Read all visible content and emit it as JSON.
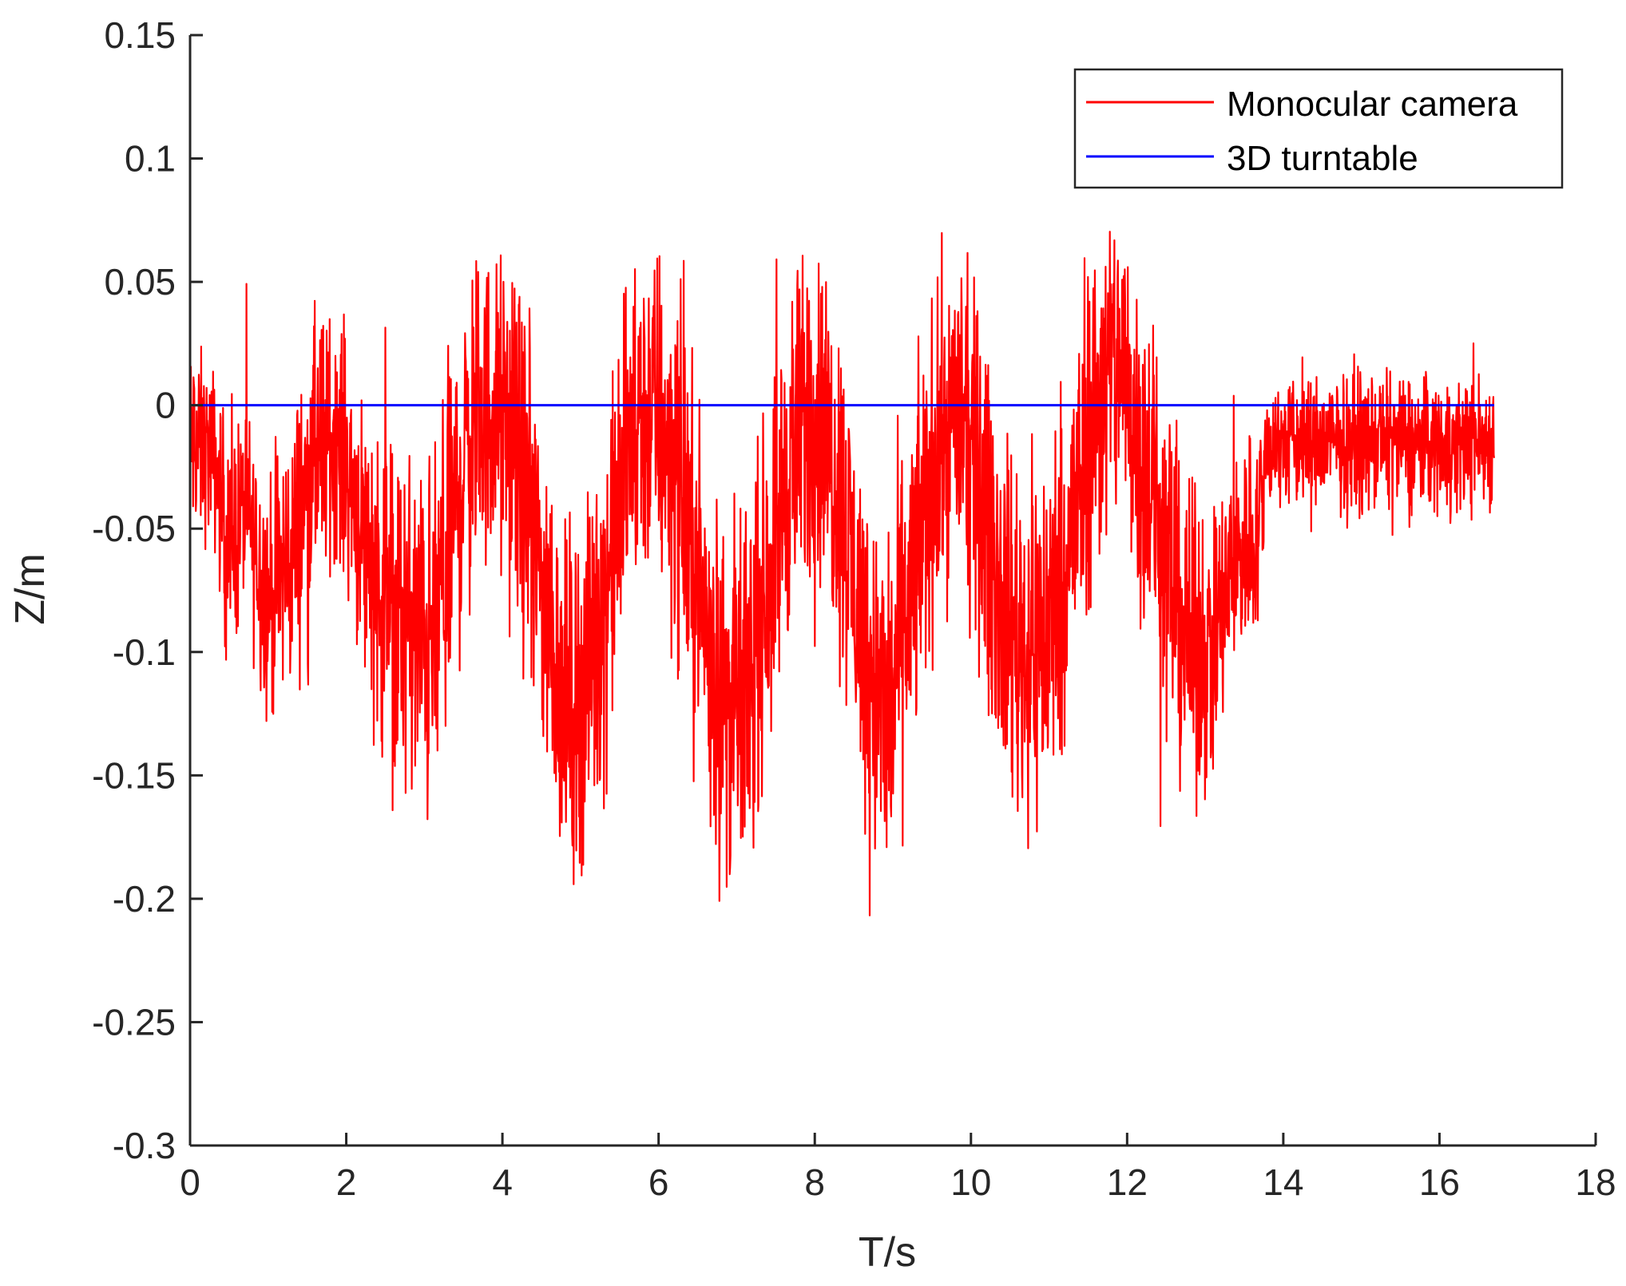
{
  "chart_data": {
    "type": "line",
    "title": "",
    "xlabel": "T/s",
    "ylabel": "Z/m",
    "xlim": [
      0,
      18
    ],
    "ylim": [
      -0.3,
      0.15
    ],
    "x_ticks": [
      0,
      2,
      4,
      6,
      8,
      10,
      12,
      14,
      16,
      18
    ],
    "y_ticks": [
      0.15,
      0.1,
      0.05,
      0,
      -0.05,
      -0.1,
      -0.15,
      -0.2,
      -0.25,
      -0.3
    ],
    "x_tick_labels": [
      "0",
      "2",
      "4",
      "6",
      "8",
      "10",
      "12",
      "14",
      "16",
      "18"
    ],
    "y_tick_labels": [
      "0.15",
      "0.1",
      "0.05",
      "0",
      "-0.05",
      "-0.1",
      "-0.15",
      "-0.2",
      "-0.25",
      "-0.3"
    ],
    "grid": false,
    "legend_position": "top-right",
    "series": [
      {
        "name": "Monocular camera",
        "color": "#ff0000",
        "style": "noisy-line",
        "x": [
          0.0,
          0.3,
          0.5,
          0.7,
          1.0,
          1.3,
          1.6,
          1.9,
          2.2,
          2.5,
          2.8,
          3.1,
          3.4,
          3.6,
          3.9,
          4.2,
          4.5,
          4.8,
          5.0,
          5.3,
          5.6,
          5.9,
          6.2,
          6.5,
          6.8,
          7.1,
          7.4,
          7.7,
          8.0,
          8.3,
          8.6,
          8.9,
          9.2,
          9.5,
          9.8,
          10.1,
          10.4,
          10.7,
          11.0,
          11.3,
          11.6,
          11.9,
          12.2,
          12.5,
          12.8,
          13.1,
          13.4,
          13.7,
          13.8,
          14.2,
          14.6,
          15.0,
          15.4,
          15.8,
          16.2,
          16.7
        ],
        "y_center": [
          -0.015,
          -0.02,
          -0.06,
          -0.04,
          -0.08,
          -0.06,
          -0.02,
          -0.01,
          -0.05,
          -0.08,
          -0.09,
          -0.1,
          -0.04,
          -0.01,
          0.0,
          -0.02,
          -0.07,
          -0.12,
          -0.12,
          -0.08,
          -0.02,
          0.0,
          -0.02,
          -0.07,
          -0.12,
          -0.12,
          -0.07,
          -0.02,
          0.0,
          -0.03,
          -0.09,
          -0.13,
          -0.08,
          -0.03,
          0.0,
          -0.03,
          -0.08,
          -0.1,
          -0.09,
          -0.05,
          0.0,
          0.02,
          -0.02,
          -0.06,
          -0.1,
          -0.1,
          -0.06,
          -0.05,
          -0.015,
          -0.015,
          -0.015,
          -0.015,
          -0.015,
          -0.015,
          -0.015,
          -0.015
        ],
        "y_spread": [
          0.06,
          0.05,
          0.07,
          0.06,
          0.07,
          0.08,
          0.08,
          0.07,
          0.08,
          0.1,
          0.1,
          0.11,
          0.1,
          0.1,
          0.09,
          0.1,
          0.1,
          0.1,
          0.1,
          0.1,
          0.1,
          0.1,
          0.11,
          0.1,
          0.11,
          0.1,
          0.1,
          0.1,
          0.1,
          0.1,
          0.1,
          0.11,
          0.1,
          0.1,
          0.09,
          0.1,
          0.1,
          0.11,
          0.11,
          0.1,
          0.1,
          0.1,
          0.1,
          0.1,
          0.09,
          0.08,
          0.07,
          0.06,
          0.04,
          0.04,
          0.04,
          0.04,
          0.04,
          0.04,
          0.04,
          0.04
        ],
        "y_max": 0.11,
        "y_min": -0.25
      },
      {
        "name": "3D turntable",
        "color": "#0000ff",
        "style": "line",
        "x": [
          0,
          16.7
        ],
        "values": [
          0,
          0
        ]
      }
    ]
  },
  "legend": {
    "items": [
      {
        "label": "Monocular camera",
        "color": "#ff0000"
      },
      {
        "label": "3D turntable",
        "color": "#0000ff"
      }
    ]
  }
}
